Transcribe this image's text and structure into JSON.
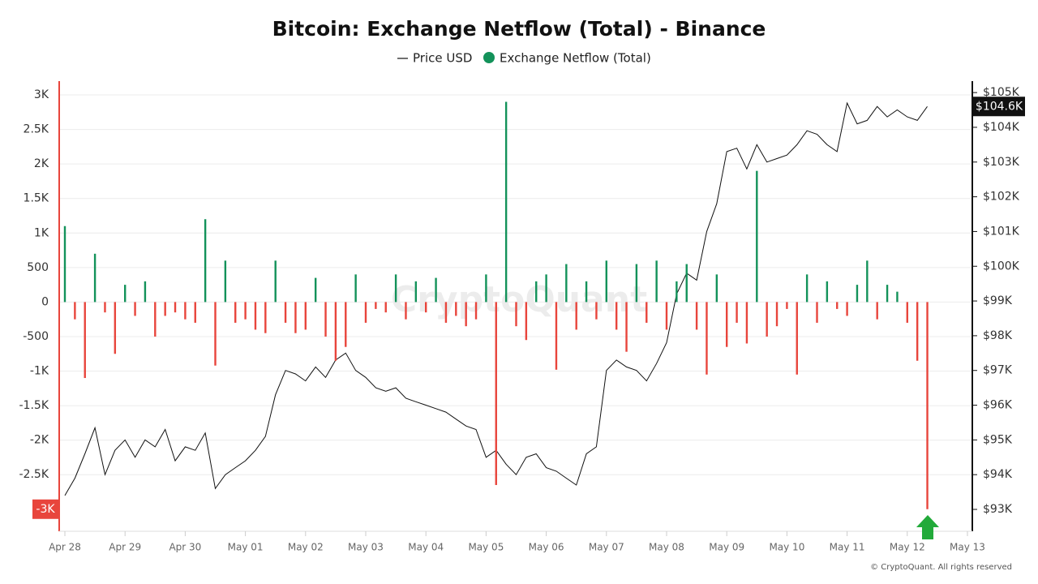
{
  "chart_data": {
    "type": "bar",
    "title": "Bitcoin: Exchange Netflow (Total) - Binance",
    "watermark": "CryptoQuant",
    "footer": "© CryptoQuant. All rights reserved",
    "grid": true,
    "categories": [
      "Apr 28",
      null,
      null,
      null,
      null,
      null,
      "Apr 29",
      null,
      null,
      null,
      null,
      null,
      "Apr 30",
      null,
      null,
      null,
      null,
      null,
      "May 01",
      null,
      null,
      null,
      null,
      null,
      "May 02",
      null,
      null,
      null,
      null,
      null,
      "May 03",
      null,
      null,
      null,
      null,
      null,
      "May 04",
      null,
      null,
      null,
      null,
      null,
      "May 05",
      null,
      null,
      null,
      null,
      null,
      "May 06",
      null,
      null,
      null,
      null,
      null,
      "May 07",
      null,
      null,
      null,
      null,
      null,
      "May 08",
      null,
      null,
      null,
      null,
      null,
      "May 09",
      null,
      null,
      null,
      null,
      null,
      "May 10",
      null,
      null,
      null,
      null,
      null,
      "May 11",
      null,
      null,
      null,
      null,
      null,
      "May 12",
      null,
      null,
      null,
      null,
      null,
      "May 13"
    ],
    "ylim": [
      -3320,
      3200
    ],
    "yticks": [
      {
        "value": 3000,
        "label": "3K"
      },
      {
        "value": 2500,
        "label": "2.5K"
      },
      {
        "value": 2000,
        "label": "2K"
      },
      {
        "value": 1500,
        "label": "1.5K"
      },
      {
        "value": 1000,
        "label": "1K"
      },
      500,
      0,
      -500,
      {
        "value": -1000,
        "label": "-1K"
      },
      {
        "value": -1500,
        "label": "-1.5K"
      },
      {
        "value": -2000,
        "label": "-2K"
      },
      {
        "value": -2500,
        "label": "-2.5K"
      }
    ],
    "y2lim": [
      92370,
      105330
    ],
    "y2ticks": [
      {
        "value": 93000,
        "label": "$93K"
      },
      {
        "value": 94000,
        "label": "$94K"
      },
      {
        "value": 95000,
        "label": "$95K"
      },
      {
        "value": 96000,
        "label": "$96K"
      },
      {
        "value": 97000,
        "label": "$97K"
      },
      {
        "value": 98000,
        "label": "$98K"
      },
      {
        "value": 99000,
        "label": "$99K"
      },
      {
        "value": 100000,
        "label": "$100K"
      },
      {
        "value": 101000,
        "label": "$101K"
      },
      {
        "value": 102000,
        "label": "$102K"
      },
      {
        "value": 103000,
        "label": "$103K"
      },
      {
        "value": 104000,
        "label": "$104K"
      },
      {
        "value": 105000,
        "label": "$105K"
      }
    ],
    "series": [
      {
        "name": "Price USD",
        "type": "line",
        "axis": "y2",
        "color": "#111111",
        "values": [
          93400,
          93900,
          94600,
          95350,
          94000,
          94700,
          95000,
          94500,
          95000,
          94800,
          95300,
          94400,
          94800,
          94700,
          95200,
          93600,
          94000,
          94200,
          94400,
          94700,
          95100,
          96300,
          97000,
          96900,
          96700,
          97100,
          96800,
          97300,
          97500,
          97000,
          96800,
          96500,
          96400,
          96500,
          96200,
          96100,
          96000,
          95900,
          95800,
          95600,
          95400,
          95300,
          94500,
          94700,
          94300,
          94000,
          94500,
          94600,
          94200,
          94100,
          93900,
          93700,
          94600,
          94800,
          97000,
          97300,
          97100,
          97000,
          96700,
          97200,
          97800,
          99200,
          99800,
          99600,
          101000,
          101800,
          103300,
          103400,
          102800,
          103500,
          103000,
          103100,
          103200,
          103500,
          103900,
          103800,
          103500,
          103300,
          104700,
          104100,
          104200,
          104600,
          104300,
          104500,
          104300,
          104200,
          104600,
          null,
          null,
          null,
          null
        ],
        "value_labels": [
          null,
          null,
          null,
          null,
          null,
          null,
          null,
          null,
          null,
          null,
          null,
          null,
          null,
          null,
          null,
          null,
          null,
          null,
          null,
          null,
          null,
          null,
          null,
          null,
          null,
          null,
          null,
          null,
          null,
          null,
          null,
          null,
          null,
          null,
          null,
          null,
          null,
          null,
          null,
          null,
          null,
          null,
          null,
          null,
          null,
          null,
          null,
          null,
          null,
          null,
          null,
          null,
          null,
          null,
          null,
          null,
          null,
          null,
          null,
          null,
          null,
          null,
          null,
          null,
          null,
          null,
          null,
          null,
          null,
          null,
          null,
          null,
          null,
          null,
          null,
          null,
          null,
          null,
          null,
          null,
          null,
          null,
          null,
          null,
          null,
          null,
          "$104.6K",
          null,
          null,
          null,
          null
        ]
      },
      {
        "name": "Exchange Netflow (Total)",
        "type": "bar",
        "color": "#13925a",
        "negative_color": "#e8453c",
        "values": [
          1100,
          -250,
          -1100,
          700,
          -150,
          -750,
          250,
          -200,
          300,
          -500,
          -200,
          -150,
          -250,
          -300,
          1200,
          -920,
          600,
          -300,
          -250,
          -400,
          -450,
          600,
          -300,
          -450,
          -400,
          350,
          -500,
          -850,
          -650,
          400,
          -300,
          -100,
          -150,
          400,
          -250,
          300,
          -150,
          350,
          -300,
          -200,
          -350,
          -250,
          400,
          -2650,
          2900,
          -350,
          -550,
          300,
          400,
          -980,
          550,
          -400,
          300,
          -250,
          600,
          -400,
          -720,
          550,
          -300,
          600,
          -400,
          300,
          550,
          -400,
          -1050,
          400,
          -650,
          -300,
          -600,
          1900,
          -500,
          -350,
          -100,
          -1050,
          400,
          -300,
          300,
          -100,
          -200,
          250,
          600,
          -250,
          250,
          150,
          -300,
          -850,
          -3000,
          null,
          null,
          null,
          null
        ],
        "value_labels": [
          null,
          null,
          null,
          null,
          null,
          null,
          null,
          null,
          null,
          null,
          null,
          null,
          null,
          null,
          null,
          null,
          null,
          null,
          null,
          null,
          null,
          null,
          null,
          null,
          null,
          null,
          null,
          null,
          null,
          null,
          null,
          null,
          null,
          null,
          null,
          null,
          null,
          null,
          null,
          null,
          null,
          null,
          null,
          null,
          null,
          null,
          null,
          null,
          null,
          null,
          null,
          null,
          null,
          null,
          null,
          null,
          null,
          null,
          null,
          null,
          null,
          null,
          null,
          null,
          null,
          null,
          null,
          null,
          null,
          null,
          null,
          null,
          null,
          null,
          null,
          null,
          null,
          null,
          null,
          null,
          null,
          null,
          null,
          null,
          null,
          null,
          "-3K",
          null,
          null,
          null,
          null
        ]
      }
    ]
  }
}
